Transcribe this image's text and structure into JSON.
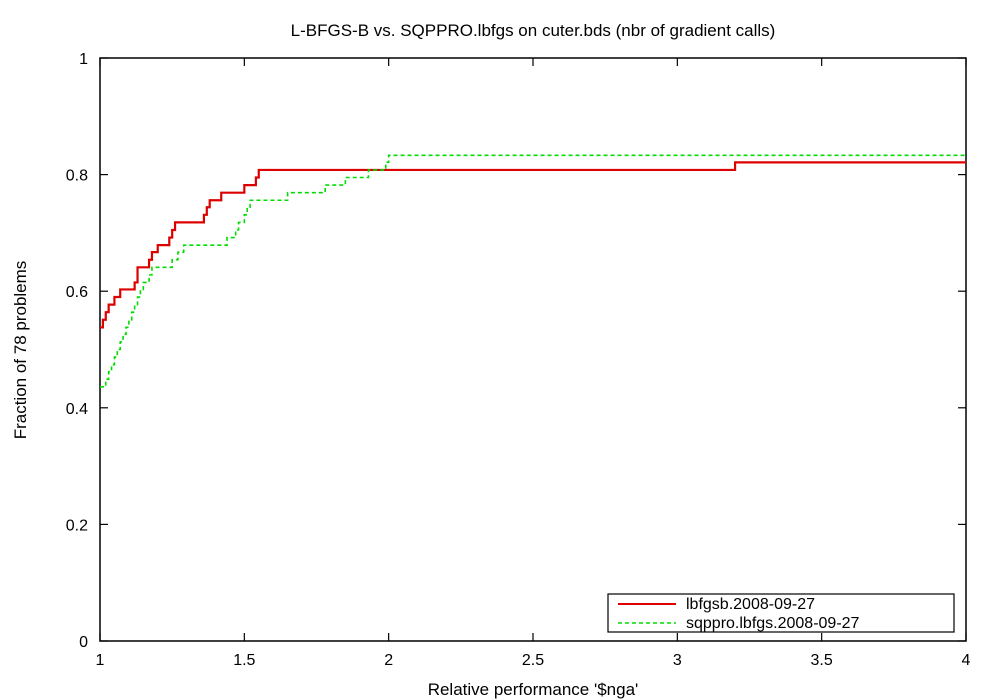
{
  "chart_data": {
    "type": "line",
    "step": true,
    "title": "L-BFGS-B vs. SQPPRO.lbfgs on cuter.bds (nbr of gradient calls)",
    "xlabel": "Relative performance '$nga'",
    "ylabel": "Fraction of 78 problems",
    "xlim": [
      1,
      4
    ],
    "ylim": [
      0,
      1
    ],
    "xticks": [
      1,
      1.5,
      2,
      2.5,
      3,
      3.5,
      4
    ],
    "xtick_labels": [
      "1",
      "1.5",
      "2",
      "2.5",
      "3",
      "3.5",
      "4"
    ],
    "yticks": [
      0,
      0.2,
      0.4,
      0.6,
      0.8,
      1
    ],
    "ytick_labels": [
      "0",
      "0.2",
      "0.4",
      "0.6",
      "0.8",
      "1"
    ],
    "grid": false,
    "legend_position": "bottom-right",
    "series": [
      {
        "name": "lbfgsb.2008-09-27",
        "color": "#dd0000",
        "dash": "solid",
        "x": [
          1.0,
          1.01,
          1.02,
          1.03,
          1.05,
          1.07,
          1.12,
          1.13,
          1.17,
          1.18,
          1.2,
          1.24,
          1.25,
          1.26,
          1.36,
          1.37,
          1.38,
          1.4,
          1.42,
          1.45,
          1.5,
          1.54,
          1.55,
          3.19,
          3.2,
          4.0
        ],
        "y": [
          0.538,
          0.551,
          0.564,
          0.577,
          0.59,
          0.603,
          0.615,
          0.641,
          0.654,
          0.667,
          0.679,
          0.692,
          0.705,
          0.718,
          0.731,
          0.744,
          0.756,
          0.756,
          0.769,
          0.769,
          0.782,
          0.795,
          0.808,
          0.808,
          0.821,
          0.821
        ]
      },
      {
        "name": "sqppro.lbfgs.2008-09-27",
        "color": "#00dd00",
        "dash": "dashed",
        "x": [
          1.0,
          1.02,
          1.03,
          1.04,
          1.05,
          1.06,
          1.07,
          1.08,
          1.09,
          1.1,
          1.11,
          1.12,
          1.13,
          1.14,
          1.15,
          1.16,
          1.17,
          1.18,
          1.19,
          1.2,
          1.25,
          1.27,
          1.29,
          1.44,
          1.45,
          1.47,
          1.48,
          1.5,
          1.51,
          1.52,
          1.53,
          1.6,
          1.65,
          1.72,
          1.78,
          1.8,
          1.85,
          1.9,
          1.93,
          1.97,
          1.99,
          2.0,
          4.0
        ],
        "y": [
          0.436,
          0.449,
          0.462,
          0.474,
          0.487,
          0.5,
          0.513,
          0.526,
          0.538,
          0.551,
          0.564,
          0.577,
          0.59,
          0.603,
          0.615,
          0.615,
          0.628,
          0.641,
          0.641,
          0.641,
          0.654,
          0.667,
          0.679,
          0.692,
          0.692,
          0.705,
          0.718,
          0.731,
          0.744,
          0.756,
          0.756,
          0.756,
          0.769,
          0.769,
          0.782,
          0.782,
          0.795,
          0.795,
          0.808,
          0.808,
          0.821,
          0.833,
          0.833
        ]
      }
    ]
  }
}
